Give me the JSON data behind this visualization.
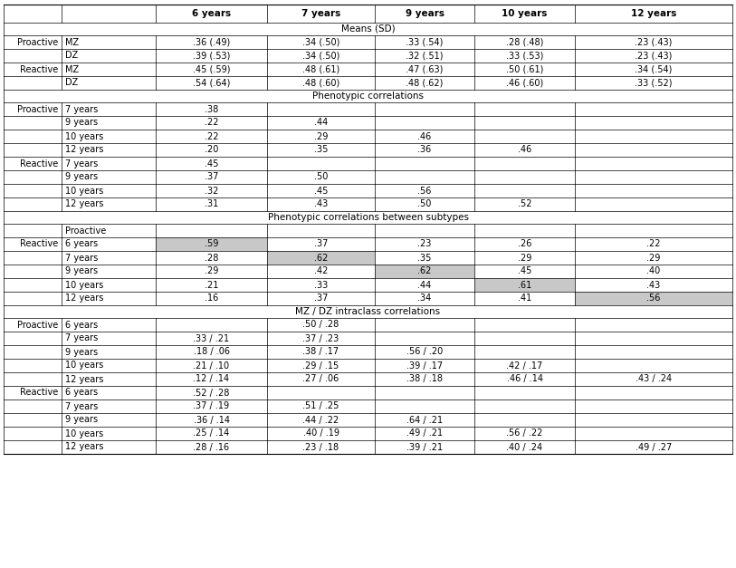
{
  "col_headers": [
    "6 years",
    "7 years",
    "9 years",
    "10 years",
    "12 years"
  ],
  "sections": [
    {
      "section_title": "Means (SD)",
      "rows": [
        [
          "Proactive",
          "MZ",
          ".36 (.49)",
          ".34 (.50)",
          ".33 (.54)",
          ".28 (.48)",
          ".23 (.43)"
        ],
        [
          "",
          "DZ",
          ".39 (.53)",
          ".34 (.50)",
          ".32 (.51)",
          ".33 (.53)",
          ".23 (.43)"
        ],
        [
          "Reactive",
          "MZ",
          ".45 (.59)",
          ".48 (.61)",
          ".47 (.63)",
          ".50 (.61)",
          ".34 (.54)"
        ],
        [
          "",
          "DZ",
          ".54 (.64)",
          ".48 (.60)",
          ".48 (.62)",
          ".46 (.60)",
          ".33 (.52)"
        ]
      ]
    },
    {
      "section_title": "Phenotypic correlations",
      "rows": [
        [
          "Proactive",
          "7 years",
          ".38",
          "",
          "",
          "",
          ""
        ],
        [
          "",
          "9 years",
          ".22",
          ".44",
          "",
          "",
          ""
        ],
        [
          "",
          "10 years",
          ".22",
          ".29",
          ".46",
          "",
          ""
        ],
        [
          "",
          "12 years",
          ".20",
          ".35",
          ".36",
          ".46",
          ""
        ],
        [
          "Reactive",
          "7 years",
          ".45",
          "",
          "",
          "",
          ""
        ],
        [
          "",
          "9 years",
          ".37",
          ".50",
          "",
          "",
          ""
        ],
        [
          "",
          "10 years",
          ".32",
          ".45",
          ".56",
          "",
          ""
        ],
        [
          "",
          "12 years",
          ".31",
          ".43",
          ".50",
          ".52",
          ""
        ]
      ]
    },
    {
      "section_title": "Phenotypic correlations between subtypes",
      "has_subheader": true,
      "subheader": [
        "",
        "Proactive",
        "",
        "",
        "",
        "",
        ""
      ],
      "rows": [
        [
          "Reactive",
          "6 years",
          ".59",
          ".37",
          ".23",
          ".26",
          ".22"
        ],
        [
          "",
          "7 years",
          ".28",
          ".62",
          ".35",
          ".29",
          ".29"
        ],
        [
          "",
          "9 years",
          ".29",
          ".42",
          ".62",
          ".45",
          ".40"
        ],
        [
          "",
          "10 years",
          ".21",
          ".33",
          ".44",
          ".61",
          ".43"
        ],
        [
          "",
          "12 years",
          ".16",
          ".37",
          ".34",
          ".41",
          ".56"
        ]
      ],
      "highlight_diagonal": true
    },
    {
      "section_title": "MZ / DZ intraclass correlations",
      "rows": [
        [
          "Proactive",
          "6 years",
          "",
          ".50 / .28",
          "",
          "",
          ""
        ],
        [
          "",
          "7 years",
          ".33 / .21",
          ".37 / .23",
          "",
          "",
          ""
        ],
        [
          "",
          "9 years",
          ".18 / .06",
          ".38 / .17",
          ".56 / .20",
          "",
          ""
        ],
        [
          "",
          "10 years",
          ".21 / .10",
          ".29 / .15",
          ".39 / .17",
          ".42 / .17",
          ""
        ],
        [
          "",
          "12 years",
          ".12 / .14",
          ".27 / .06",
          ".38 / .18",
          ".46 / .14",
          ".43 / .24"
        ],
        [
          "Reactive",
          "6 years",
          ".52 / .28",
          "",
          "",
          "",
          ""
        ],
        [
          "",
          "7 years",
          ".37 / .19",
          ".51 / .25",
          "",
          "",
          ""
        ],
        [
          "",
          "9 years",
          ".36 / .14",
          ".44 / .22",
          ".64 / .21",
          "",
          ""
        ],
        [
          "",
          "10 years",
          ".25 / .14",
          ".40 / .19",
          ".49 / .21",
          ".56 / .22",
          ""
        ],
        [
          "",
          "12 years",
          ".28 / .16",
          ".23 / .18",
          ".39 / .21",
          ".40 / .24",
          ".49 / .27"
        ]
      ]
    }
  ],
  "highlight_color": "#c8c8c8",
  "font_size": 7.0,
  "header_font_size": 7.5,
  "section_font_size": 7.5
}
